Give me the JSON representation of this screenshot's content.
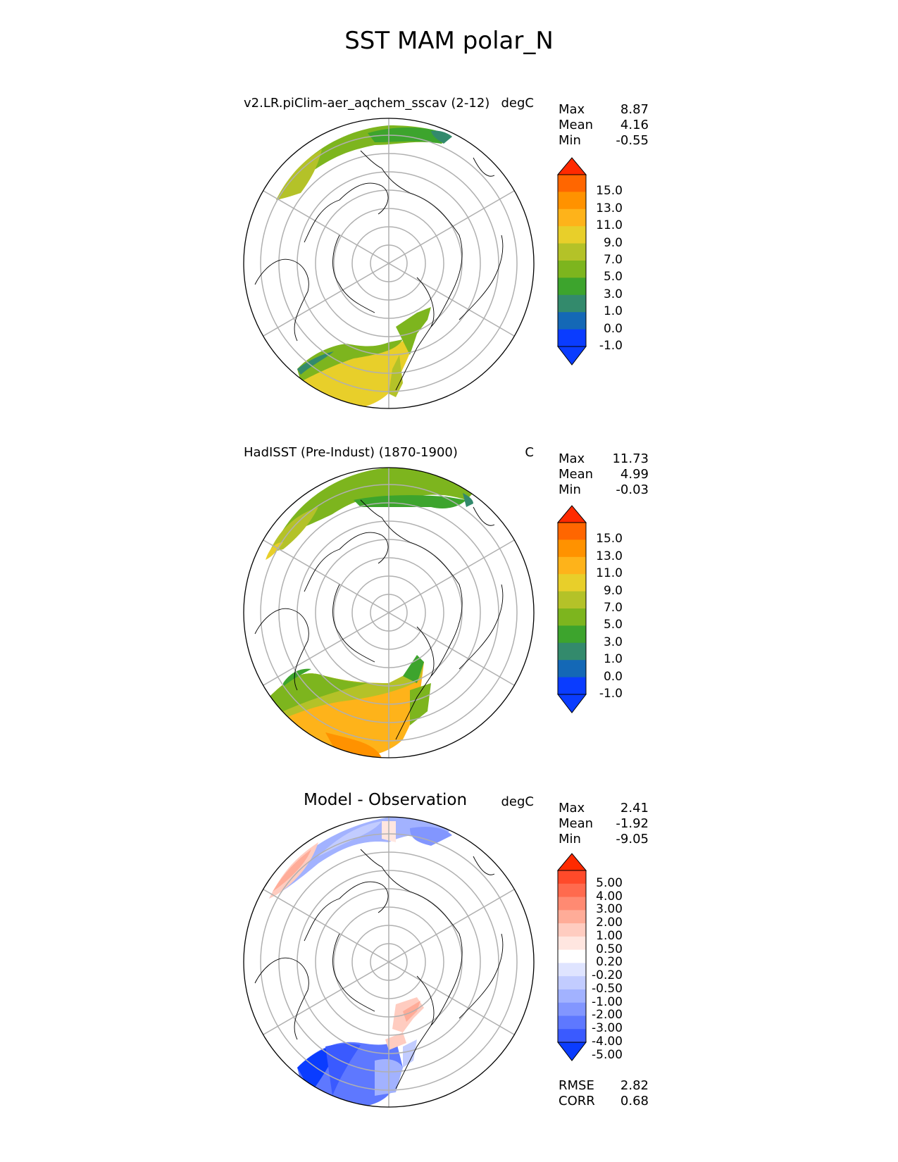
{
  "title": "SST MAM polar_N",
  "panels": [
    {
      "title": "v2.LR.piClim-aer_aqchem_sscav (2-12)",
      "units": "degC",
      "stats": [
        {
          "label": "Max",
          "value": "8.87"
        },
        {
          "label": "Mean",
          "value": "4.16"
        },
        {
          "label": "Min",
          "value": "-0.55"
        }
      ],
      "colorbar": {
        "labels": [
          "15.0",
          "13.0",
          "11.0",
          "9.0",
          "7.0",
          "5.0",
          "3.0",
          "1.0",
          "0.0",
          "-1.0"
        ],
        "colors": [
          "#ff2a00",
          "#ff6600",
          "#ff9200",
          "#feb31a",
          "#e8cf2a",
          "#b4c228",
          "#7db51e",
          "#3da42d",
          "#338a6c",
          "#1468b6",
          "#0a3cff",
          "#0a3cff"
        ]
      }
    },
    {
      "title": "HadISST (Pre-Indust) (1870-1900)",
      "units": "C",
      "stats": [
        {
          "label": "Max",
          "value": "11.73"
        },
        {
          "label": "Mean",
          "value": "4.99"
        },
        {
          "label": "Min",
          "value": "-0.03"
        }
      ],
      "colorbar": {
        "labels": [
          "15.0",
          "13.0",
          "11.0",
          "9.0",
          "7.0",
          "5.0",
          "3.0",
          "1.0",
          "0.0",
          "-1.0"
        ],
        "colors": [
          "#ff2a00",
          "#ff6600",
          "#ff9200",
          "#feb31a",
          "#e8cf2a",
          "#b4c228",
          "#7db51e",
          "#3da42d",
          "#338a6c",
          "#1468b6",
          "#0a3cff",
          "#0a3cff"
        ]
      }
    },
    {
      "title": "Model - Observation",
      "units": "degC",
      "stats": [
        {
          "label": "Max",
          "value": "2.41"
        },
        {
          "label": "Mean",
          "value": "-1.92"
        },
        {
          "label": "Min",
          "value": "-9.05"
        }
      ],
      "extra_stats": [
        {
          "label": "RMSE",
          "value": "2.82"
        },
        {
          "label": "CORR",
          "value": "0.68"
        }
      ],
      "colorbar": {
        "labels": [
          "5.00",
          "4.00",
          "3.00",
          "2.00",
          "1.00",
          "0.50",
          "0.20",
          "-0.20",
          "-0.50",
          "-1.00",
          "-2.00",
          "-3.00",
          "-4.00",
          "-5.00"
        ],
        "colors": [
          "#ff2a00",
          "#ff4a2a",
          "#ff6a4e",
          "#ff8a72",
          "#ffac98",
          "#ffccc0",
          "#ffe6e0",
          "#ffffff",
          "#dfe4ff",
          "#c2ccff",
          "#a2b2ff",
          "#8296ff",
          "#5e78ff",
          "#3a5aff",
          "#0a3cff"
        ]
      }
    }
  ]
}
